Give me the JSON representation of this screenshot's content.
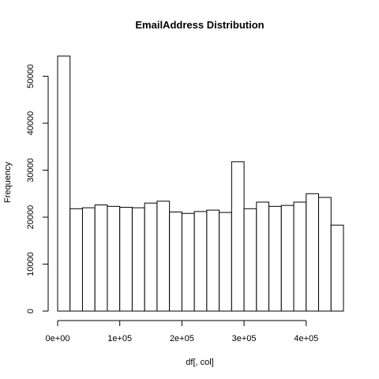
{
  "chart_data": {
    "type": "bar",
    "title": "EmailAddress  Distribution",
    "xlabel": "df[, col]",
    "ylabel": "Frequency",
    "bin_width": 20000,
    "x_start": 0,
    "xlim": [
      0,
      460000
    ],
    "ylim": [
      0,
      54300
    ],
    "x_ticks": [
      0,
      100000,
      200000,
      300000,
      400000
    ],
    "x_tick_labels": [
      "0e+00",
      "1e+05",
      "2e+05",
      "3e+05",
      "4e+05"
    ],
    "y_ticks": [
      0,
      10000,
      20000,
      30000,
      40000,
      50000
    ],
    "y_tick_labels": [
      "0",
      "10000",
      "20000",
      "30000",
      "40000",
      "50000"
    ],
    "values": [
      54300,
      21800,
      22000,
      22600,
      22300,
      22100,
      22000,
      23000,
      23400,
      21100,
      20800,
      21200,
      21500,
      21000,
      31800,
      21800,
      23200,
      22300,
      22500,
      23200,
      25000,
      24200,
      18300
    ],
    "grid": false,
    "legend": "none"
  }
}
